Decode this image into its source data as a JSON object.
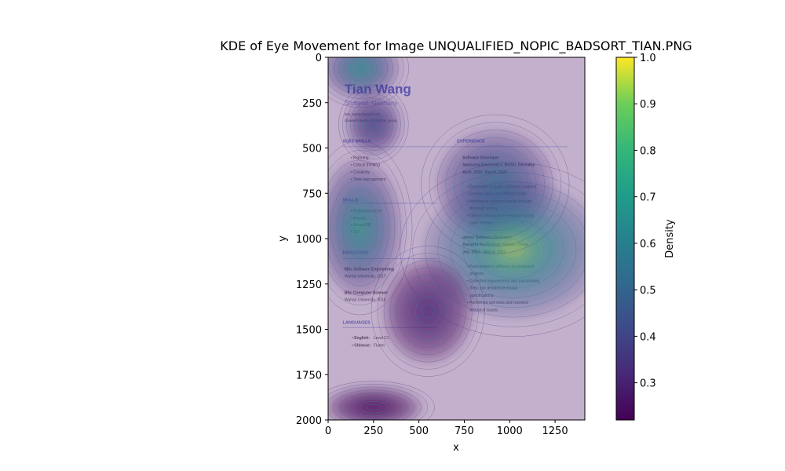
{
  "chart_data": {
    "type": "heatmap",
    "title": "KDE of Eye Movement for Image UNQUALIFIED_NOPIC_BADSORT_TIAN.PNG",
    "xlabel": "x",
    "ylabel": "y",
    "xlim": [
      0,
      1414
    ],
    "ylim": [
      2000,
      0
    ],
    "x_ticks": [
      0,
      250,
      500,
      750,
      1000,
      1250
    ],
    "y_ticks": [
      0,
      250,
      500,
      750,
      1000,
      1250,
      1500,
      1750,
      2000
    ],
    "colorbar": {
      "label": "Density",
      "colormap": "viridis",
      "range": [
        0.22,
        1.0
      ],
      "ticks": [
        0.3,
        0.4,
        0.5,
        0.6,
        0.7,
        0.8,
        0.9,
        1.0
      ]
    },
    "density_peaks": [
      {
        "x": 180,
        "y": 60,
        "sx": 110,
        "sy": 90,
        "level": 0.75
      },
      {
        "x": 250,
        "y": 370,
        "sx": 80,
        "sy": 90,
        "level": 0.45
      },
      {
        "x": 175,
        "y": 940,
        "sx": 120,
        "sy": 200,
        "level": 0.85
      },
      {
        "x": 920,
        "y": 700,
        "sx": 170,
        "sy": 160,
        "level": 0.6
      },
      {
        "x": 1020,
        "y": 1060,
        "sx": 260,
        "sy": 200,
        "level": 1.0
      },
      {
        "x": 550,
        "y": 1400,
        "sx": 130,
        "sy": 150,
        "level": 0.3
      },
      {
        "x": 250,
        "y": 1930,
        "sx": 140,
        "sy": 60,
        "level": 0.25
      }
    ],
    "grid": false
  },
  "resume": {
    "name": "Tian Wang",
    "location": "Stuttgart, Germany",
    "email": "tian_wang@gmail.com",
    "linkedin": "@www.linkedin.com/in/tian_wang",
    "soft_skills_title": "SOFT SKILLS",
    "soft_skills": [
      "Planning",
      "Critical thinking",
      "Creativity",
      "Time management"
    ],
    "skills_title": "SKILLS",
    "skills": [
      "Proficient in C++",
      "Angular",
      "MongoDB",
      "GIT"
    ],
    "education_title": "EDUCATION",
    "education": [
      {
        "degree": "MSc Software Engineering",
        "school": "Wuhan University, 2017"
      },
      {
        "degree": "BSc Computer Science",
        "school": "Wuhan University, 2015"
      }
    ],
    "languages_title": "LANGUAGES",
    "languages": [
      {
        "name": "English:",
        "level": "Level C1"
      },
      {
        "name": "Chinese:",
        "level": "Fluent"
      }
    ],
    "experience_title": "EXPERIENCE",
    "jobs": [
      {
        "title": "Software Developer",
        "company": "Samsung Electronics, Berlin, Germany",
        "dates": "April, 2022- March, 2023",
        "bullets": [
          "Developed scalable software solutions.",
          "Created clean and efficient code.",
          "Maintained software quality through",
          "thorough testing.",
          "Offered constructive feedback during",
          "code reviews."
        ]
      },
      {
        "title": "Junior Software Developer",
        "company": "Xiangrui Technology Wuhan, China",
        "dates": "Jan, 2017 - March, 2022",
        "bullets": [
          "Participated in software development",
          "projects.",
          "Collected requirements and transformed",
          "them into detailed technical",
          "specifications.",
          "Performed unit tests and resolved",
          "technical issues."
        ]
      }
    ]
  }
}
